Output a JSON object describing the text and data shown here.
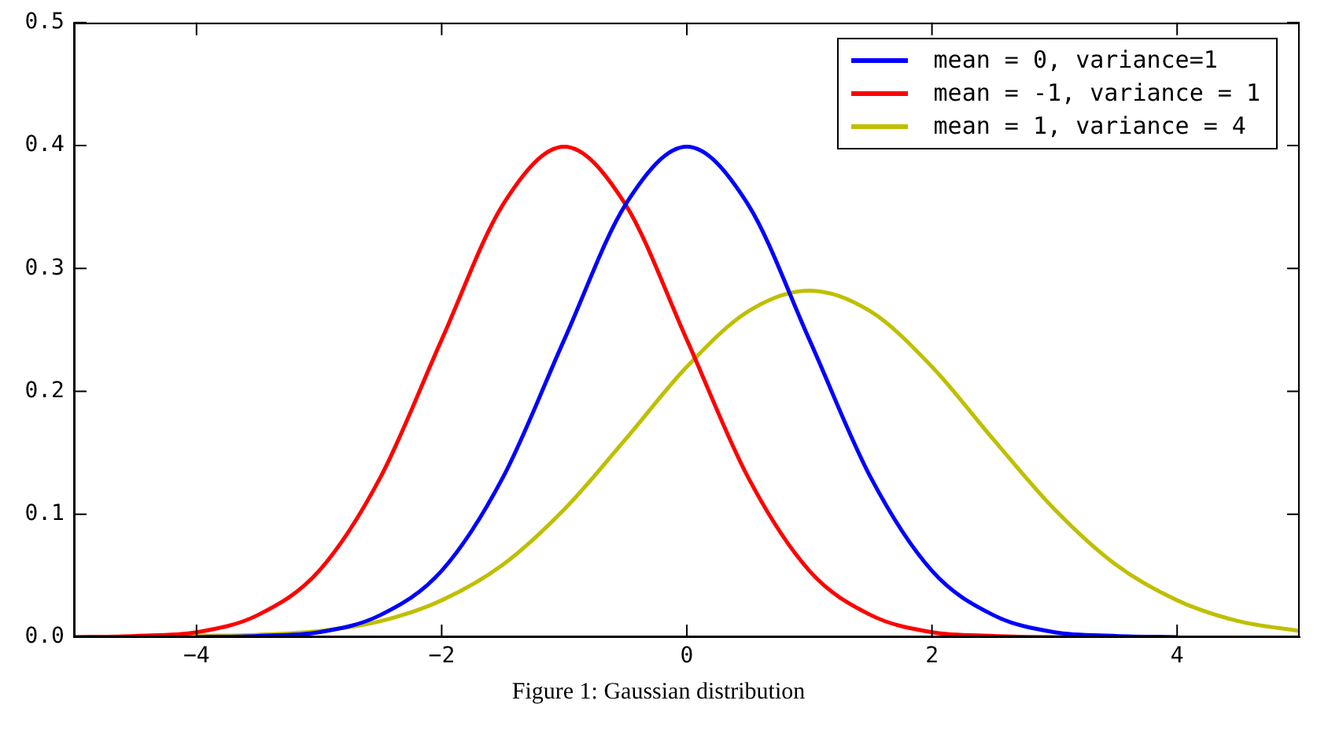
{
  "chart_data": {
    "type": "line",
    "x": [
      -5,
      -4.5,
      -4,
      -3.5,
      -3,
      -2.5,
      -2,
      -1.5,
      -1,
      -0.5,
      0,
      0.5,
      1,
      1.5,
      2,
      2.5,
      3,
      3.5,
      4,
      4.5,
      5
    ],
    "series": [
      {
        "name": "mean = 0, variance=1",
        "color": "#0000ff",
        "values": [
          null,
          null,
          0,
          0.001,
          0.004,
          0.018,
          0.054,
          0.13,
          0.242,
          0.352,
          0.399,
          0.352,
          0.242,
          0.13,
          0.054,
          0.018,
          0.004,
          0.001,
          0,
          null,
          null
        ]
      },
      {
        "name": "mean = -1, variance = 1",
        "color": "#ff0000",
        "values": [
          0,
          0.001,
          0.004,
          0.018,
          0.054,
          0.13,
          0.242,
          0.352,
          0.399,
          0.352,
          0.242,
          0.13,
          0.054,
          0.018,
          0.004,
          0.001,
          0,
          0,
          null,
          null,
          null
        ]
      },
      {
        "name": "mean = 1, variance = 4",
        "color": "#bfbf00",
        "values": [
          0,
          0,
          0.001,
          0.002,
          0.005,
          0.013,
          0.03,
          0.059,
          0.104,
          0.161,
          0.22,
          0.265,
          0.282,
          0.265,
          0.22,
          0.161,
          0.104,
          0.059,
          0.03,
          0.013,
          0.005
        ]
      }
    ],
    "xlim": [
      -5,
      5
    ],
    "xticks": [
      {
        "value": -4,
        "label": "−4"
      },
      {
        "value": -2,
        "label": "−2"
      },
      0,
      2,
      4
    ],
    "ylim": [
      0,
      0.5
    ],
    "yticks": [
      {
        "value": 0,
        "label": "0.0"
      },
      0.1,
      0.2,
      0.3,
      0.4,
      0.5
    ],
    "grid": false,
    "legend": "top right",
    "marker": "none",
    "line_style": "solid",
    "annotations": [
      "Figure 1: Gaussian distribution"
    ]
  }
}
